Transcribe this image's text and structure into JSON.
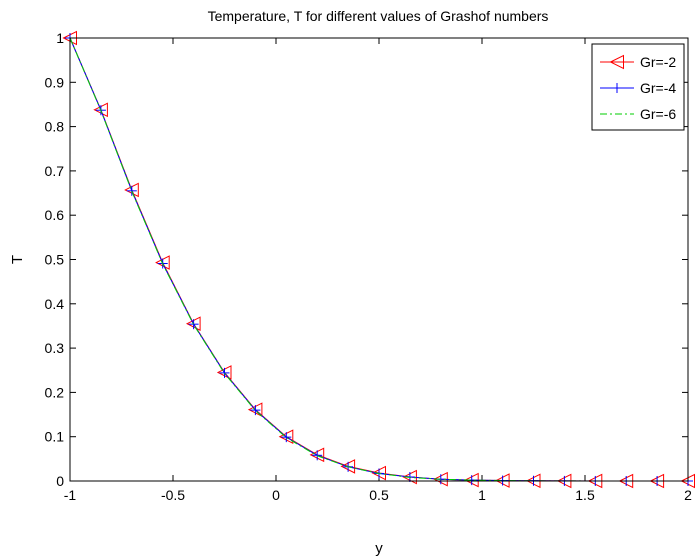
{
  "chart_data": {
    "type": "line",
    "title": "Temperature, T for different values of Grashof numbers",
    "xlabel": "y",
    "ylabel": "T",
    "xlim": [
      -1,
      2
    ],
    "ylim": [
      0,
      1
    ],
    "xticks": [
      -1,
      -0.5,
      0,
      0.5,
      1,
      1.5,
      2
    ],
    "xtick_labels": [
      "-1",
      "-0.5",
      "0",
      "0.5",
      "1",
      "1.5",
      "2"
    ],
    "yticks": [
      0,
      0.1,
      0.2,
      0.3,
      0.4,
      0.5,
      0.6,
      0.7,
      0.8,
      0.9,
      1
    ],
    "ytick_labels": [
      "0",
      "0.1",
      "0.2",
      "0.3",
      "0.4",
      "0.5",
      "0.6",
      "0.7",
      "0.8",
      "0.9",
      "1"
    ],
    "grid": false,
    "legend_position": "top-right",
    "x": [
      -1.0,
      -0.85,
      -0.7,
      -0.55,
      -0.4,
      -0.25,
      -0.1,
      0.05,
      0.2,
      0.35,
      0.5,
      0.65,
      0.8,
      0.95,
      1.1,
      1.25,
      1.4,
      1.55,
      1.7,
      1.85,
      2.0
    ],
    "series": [
      {
        "name": "Gr=-2",
        "color": "#ff0000",
        "line_style": "solid",
        "marker": "triangle-left",
        "values": [
          1.0,
          0.838,
          0.657,
          0.493,
          0.355,
          0.245,
          0.161,
          0.1,
          0.059,
          0.033,
          0.018,
          0.009,
          0.004,
          0.002,
          0.001,
          0.0005,
          0.0002,
          0.0001,
          0.0,
          0.0,
          0.0
        ]
      },
      {
        "name": "Gr=-4",
        "color": "#0000ff",
        "line_style": "solid",
        "marker": "plus",
        "values": [
          1.0,
          0.837,
          0.655,
          0.491,
          0.354,
          0.244,
          0.16,
          0.099,
          0.058,
          0.032,
          0.017,
          0.009,
          0.004,
          0.002,
          0.001,
          0.0005,
          0.0002,
          0.0001,
          0.0,
          0.0,
          0.0
        ]
      },
      {
        "name": "Gr=-6",
        "color": "#00cc00",
        "line_style": "dash-dot",
        "marker": "none",
        "values": [
          1.0,
          0.836,
          0.654,
          0.49,
          0.353,
          0.243,
          0.159,
          0.098,
          0.057,
          0.032,
          0.017,
          0.008,
          0.004,
          0.002,
          0.001,
          0.0005,
          0.0002,
          0.0001,
          0.0,
          0.0,
          0.0
        ]
      }
    ]
  }
}
